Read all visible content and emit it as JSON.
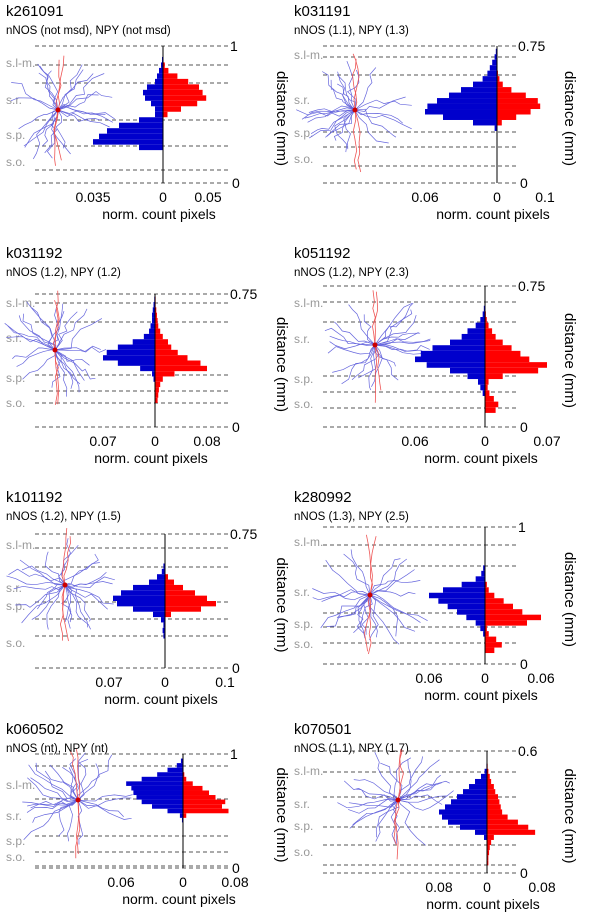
{
  "colors": {
    "apical": "#ff0000",
    "basal": "#0000cc",
    "dend": "#6666dd",
    "axon": "#ee5555",
    "line": "#555555",
    "layer": "#999999"
  },
  "axis_label_distance": "distance (mm)",
  "axis_label_count": "norm. count pixels",
  "panels": [
    {
      "id": "k261091",
      "subtitle": "nNOS (not msd), NPY (not msd)",
      "layers": [
        "s.l-m.",
        "s.r.",
        "s.p.",
        "s.o."
      ],
      "y_ticks": [
        "1",
        "0"
      ],
      "x_ticks": [
        "0.035",
        "0",
        "0.05"
      ],
      "chart_data": {
        "type": "bar",
        "orientation": "horizontal",
        "y_range": [
          0,
          1
        ],
        "y_bins": [
          0.26,
          0.3,
          0.34,
          0.38,
          0.42,
          0.46,
          0.5,
          0.54,
          0.58,
          0.62,
          0.66,
          0.7,
          0.74,
          0.78,
          0.82,
          0.86,
          0.9
        ],
        "series": [
          {
            "name": "left",
            "values": [
              0.012,
              0.035,
              0.032,
              0.028,
              0.022,
              0.012,
              0.004,
              0.004,
              0.006,
              0.009,
              0.01,
              0.008,
              0.004,
              0.003,
              0.002,
              0.001,
              0.0005
            ]
          },
          {
            "name": "right",
            "values": [
              0,
              0,
              0,
              0,
              0,
              0,
              0.005,
              0.02,
              0.038,
              0.048,
              0.044,
              0.04,
              0.028,
              0.016,
              0.006,
              0.002,
              0
            ]
          }
        ]
      }
    },
    {
      "id": "k031191",
      "subtitle": "nNOS (1.1), NPY (1.3)",
      "layers": [
        "s.l-m.",
        "s.r.",
        "s.p.",
        "s.o."
      ],
      "y_ticks": [
        "0.75",
        "0"
      ],
      "x_ticks": [
        "0.06",
        "0",
        "0.1"
      ],
      "chart_data": {
        "type": "bar",
        "orientation": "horizontal",
        "y_range": [
          0,
          0.75
        ],
        "y_bins": [
          0.3,
          0.33,
          0.36,
          0.39,
          0.42,
          0.45,
          0.48,
          0.51,
          0.54,
          0.57,
          0.6,
          0.63,
          0.66,
          0.69,
          0.72
        ],
        "series": [
          {
            "name": "left",
            "values": [
              0.002,
              0.02,
              0.045,
              0.06,
              0.058,
              0.05,
              0.04,
              0.03,
              0.02,
              0.012,
              0.008,
              0.006,
              0.004,
              0.002,
              0.001
            ]
          },
          {
            "name": "right",
            "values": [
              0,
              0.01,
              0.04,
              0.07,
              0.09,
              0.085,
              0.06,
              0.03,
              0.012,
              0.005,
              0.002,
              0,
              0,
              0,
              0
            ]
          }
        ]
      }
    },
    {
      "id": "k031192",
      "subtitle": "nNOS (1.2), NPY (1.2)",
      "layers": [
        "s.l-m.",
        "s.r.",
        "s.p.",
        "s.o."
      ],
      "y_ticks": [
        "0.75",
        "0"
      ],
      "x_ticks": [
        "0.07",
        "0",
        "0.08"
      ],
      "chart_data": {
        "type": "bar",
        "orientation": "horizontal",
        "y_range": [
          0,
          0.75
        ],
        "y_bins": [
          0.15,
          0.18,
          0.21,
          0.24,
          0.27,
          0.3,
          0.33,
          0.36,
          0.39,
          0.42,
          0.45,
          0.48,
          0.51,
          0.54,
          0.57,
          0.6,
          0.63,
          0.66,
          0.69,
          0.72
        ],
        "series": [
          {
            "name": "left",
            "values": [
              0,
              0,
              0,
              0,
              0.002,
              0.004,
              0.02,
              0.05,
              0.07,
              0.065,
              0.05,
              0.03,
              0.015,
              0.008,
              0.006,
              0.004,
              0.004,
              0.003,
              0.002,
              0.001
            ]
          },
          {
            "name": "right",
            "values": [
              0.004,
              0.005,
              0.006,
              0.008,
              0.012,
              0.03,
              0.08,
              0.07,
              0.05,
              0.035,
              0.025,
              0.02,
              0.012,
              0.008,
              0.005,
              0.004,
              0.003,
              0.002,
              0.001,
              0.001
            ]
          }
        ]
      }
    },
    {
      "id": "k051192",
      "subtitle": "nNOS (1.2), NPY (2.3)",
      "layers": [
        "s.l-m.",
        "s.r.",
        "s.p.",
        "s.o."
      ],
      "y_ticks": [
        "0.75",
        "0"
      ],
      "x_ticks": [
        "0.06",
        "0",
        "0.07"
      ],
      "chart_data": {
        "type": "bar",
        "orientation": "horizontal",
        "y_range": [
          0,
          0.75
        ],
        "y_bins": [
          0.09,
          0.12,
          0.15,
          0.18,
          0.21,
          0.24,
          0.27,
          0.3,
          0.33,
          0.36,
          0.39,
          0.42,
          0.45,
          0.48,
          0.51,
          0.54,
          0.57,
          0.6,
          0.63,
          0.66
        ],
        "series": [
          {
            "name": "left",
            "values": [
              0,
              0,
              0,
              0.002,
              0.004,
              0.006,
              0.015,
              0.03,
              0.05,
              0.06,
              0.055,
              0.045,
              0.03,
              0.02,
              0.015,
              0.008,
              0.004,
              0.002,
              0.001,
              0
            ]
          },
          {
            "name": "right",
            "values": [
              0.012,
              0.015,
              0.01,
              0.005,
              0.003,
              0.004,
              0.02,
              0.06,
              0.07,
              0.05,
              0.04,
              0.03,
              0.02,
              0.012,
              0.008,
              0.004,
              0.002,
              0.001,
              0,
              0
            ]
          }
        ]
      }
    },
    {
      "id": "k101192",
      "subtitle": "nNOS (1.2), NPY (1.5)",
      "layers": [
        "s.l-m.",
        "s.r.",
        "s.p.",
        "s.o."
      ],
      "y_ticks": [
        "0.75",
        "0"
      ],
      "x_ticks": [
        "0.07",
        "0",
        "0.1"
      ],
      "chart_data": {
        "type": "bar",
        "orientation": "horizontal",
        "y_range": [
          0,
          0.75
        ],
        "y_bins": [
          0.18,
          0.21,
          0.24,
          0.27,
          0.3,
          0.33,
          0.36,
          0.39,
          0.42,
          0.45,
          0.48,
          0.51,
          0.54,
          0.57,
          0.6
        ],
        "series": [
          {
            "name": "left",
            "values": [
              0.002,
              0.003,
              0.002,
              0.005,
              0.015,
              0.04,
              0.06,
              0.065,
              0.055,
              0.04,
              0.02,
              0.01,
              0.004,
              0.002,
              0
            ]
          },
          {
            "name": "right",
            "values": [
              0,
              0,
              0,
              0,
              0.01,
              0.06,
              0.085,
              0.07,
              0.05,
              0.03,
              0.015,
              0.005,
              0,
              0,
              0
            ]
          }
        ]
      }
    },
    {
      "id": "k280992",
      "subtitle": "nNOS (1.3), NPY (2.5)",
      "layers": [
        "s.l-m.",
        "s.r.",
        "s.p.",
        "s.o."
      ],
      "y_ticks": [
        "1",
        "0"
      ],
      "x_ticks": [
        "0.06",
        "0",
        "0.06"
      ],
      "chart_data": {
        "type": "bar",
        "orientation": "horizontal",
        "y_range": [
          0,
          1
        ],
        "y_bins": [
          0.1,
          0.14,
          0.18,
          0.22,
          0.26,
          0.3,
          0.34,
          0.38,
          0.42,
          0.46,
          0.5,
          0.54,
          0.58,
          0.62,
          0.66,
          0.7,
          0.74
        ],
        "series": [
          {
            "name": "left",
            "values": [
              0,
              0,
              0,
              0.002,
              0.005,
              0.01,
              0.02,
              0.03,
              0.04,
              0.05,
              0.06,
              0.045,
              0.025,
              0.01,
              0.004,
              0.002,
              0
            ]
          },
          {
            "name": "right",
            "values": [
              0.01,
              0.018,
              0.012,
              0.004,
              0.002,
              0.045,
              0.06,
              0.04,
              0.03,
              0.02,
              0.01,
              0.004,
              0.002,
              0,
              0,
              0,
              0
            ]
          }
        ]
      }
    },
    {
      "id": "k060502",
      "subtitle": "nNOS (nt), NPY (nt)",
      "layers": [
        "s.l-m.",
        "s.r.",
        "s.p.",
        "s.o."
      ],
      "y_ticks": [
        "1",
        "0"
      ],
      "x_ticks": [
        "0.06",
        "0",
        "0.08"
      ],
      "chart_data": {
        "type": "bar",
        "orientation": "horizontal",
        "y_range": [
          0,
          1
        ],
        "y_bins": [
          0.42,
          0.46,
          0.5,
          0.54,
          0.58,
          0.62,
          0.66,
          0.7,
          0.74,
          0.78,
          0.82,
          0.86,
          0.9,
          0.94
        ],
        "series": [
          {
            "name": "left",
            "values": [
              0.001,
              0.003,
              0.015,
              0.03,
              0.04,
              0.045,
              0.048,
              0.05,
              0.055,
              0.04,
              0.025,
              0.015,
              0.006,
              0.002
            ]
          },
          {
            "name": "right",
            "values": [
              0,
              0.005,
              0.07,
              0.06,
              0.065,
              0.05,
              0.04,
              0.03,
              0.015,
              0.005,
              0.002,
              0,
              0,
              0
            ]
          }
        ]
      }
    },
    {
      "id": "k070501",
      "subtitle": "nNOS (1.1), NPY (1.7)",
      "layers": [
        "s.l-m.",
        "s.r.",
        "s.p.",
        "s.o."
      ],
      "y_ticks": [
        "0.6",
        "0"
      ],
      "x_ticks": [
        "0.08",
        "0",
        "0.08"
      ],
      "chart_data": {
        "type": "bar",
        "orientation": "horizontal",
        "y_range": [
          0,
          0.6
        ],
        "y_bins": [
          0.05,
          0.075,
          0.1,
          0.125,
          0.15,
          0.175,
          0.2,
          0.225,
          0.25,
          0.275,
          0.3,
          0.325,
          0.35,
          0.375,
          0.4,
          0.425,
          0.45,
          0.475,
          0.5,
          0.525
        ],
        "series": [
          {
            "name": "left",
            "values": [
              0,
              0,
              0,
              0,
              0,
              0.005,
              0.02,
              0.045,
              0.065,
              0.075,
              0.08,
              0.07,
              0.06,
              0.05,
              0.04,
              0.03,
              0.02,
              0.01,
              0.004,
              0.001
            ]
          },
          {
            "name": "right",
            "values": [
              0.002,
              0.002,
              0.003,
              0.004,
              0.006,
              0.01,
              0.07,
              0.06,
              0.045,
              0.03,
              0.022,
              0.02,
              0.018,
              0.016,
              0.012,
              0.01,
              0.006,
              0.004,
              0.002,
              0.001
            ]
          }
        ]
      }
    }
  ]
}
